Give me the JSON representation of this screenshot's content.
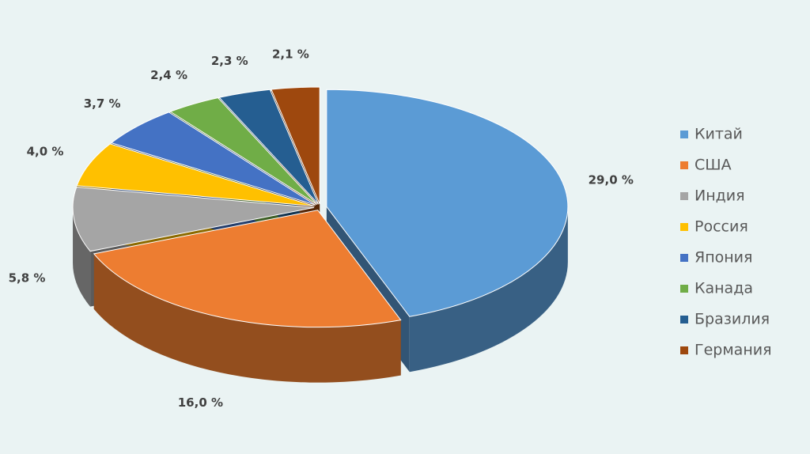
{
  "chart_data": {
    "type": "pie",
    "categories": [
      "Китай",
      "США",
      "Индия",
      "Россия",
      "Япония",
      "Канада",
      "Бразилия",
      "Германия"
    ],
    "values": [
      29.0,
      16.0,
      5.8,
      4.0,
      3.7,
      2.4,
      2.3,
      2.1
    ],
    "value_labels": [
      "29,0 %",
      "16,0 %",
      "5,8 %",
      "4,0 %",
      "3,7 %",
      "2,4 %",
      "2,3 %",
      "2,1 %"
    ],
    "colors": [
      "#5b9bd5",
      "#ed7d31",
      "#a5a5a5",
      "#ffc000",
      "#4472c4",
      "#70ad47",
      "#255e91",
      "#9e480e"
    ],
    "legend": "right"
  }
}
